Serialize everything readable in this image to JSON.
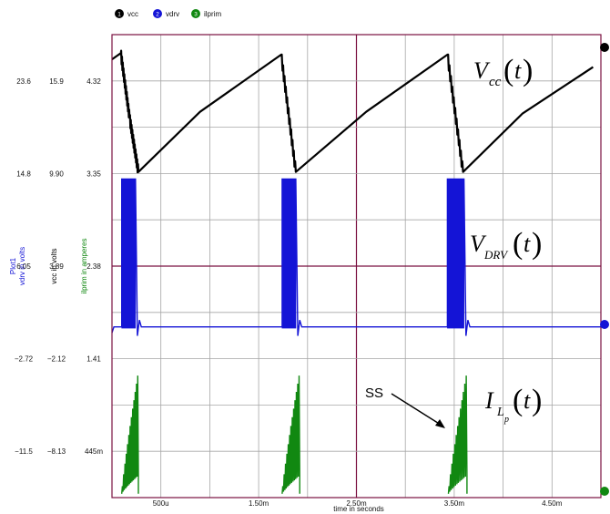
{
  "legend": [
    {
      "num": "1",
      "label": "vcc",
      "color": "#000000"
    },
    {
      "num": "2",
      "label": "vdrv",
      "color": "#1414d6"
    },
    {
      "num": "3",
      "label": "ilprim",
      "color": "#118811"
    }
  ],
  "colors": {
    "plot_border": "#7a1040",
    "grid": "#a6a6a6",
    "vcc": "#000000",
    "vdrv": "#1414d6",
    "ilprim": "#118811"
  },
  "axis_titles": {
    "plot_title": "Plot1",
    "vdrv": "vdrv in volts",
    "vcc": "vcc in volts",
    "ilprim": "ilprim in amperes",
    "x": "time in seconds"
  },
  "annotations": {
    "vcc": {
      "main": "V",
      "sub": "cc",
      "arg": "t"
    },
    "vdrv": {
      "main": "V",
      "sub": "DRV",
      "arg": "t"
    },
    "ilp": {
      "main": "I",
      "sub": "L",
      "subsub": "p",
      "arg": "t"
    },
    "ss": "SS"
  },
  "chart_data": {
    "type": "line",
    "xlabel": "time in seconds",
    "x_tick_labels": [
      "500u",
      "1.50m",
      "2.50m",
      "3.50m",
      "4.50m"
    ],
    "x_ticks": [
      0.0005,
      0.0015,
      0.0025,
      0.0035,
      0.0045
    ],
    "xlim": [
      0,
      0.005
    ],
    "y_tick_labels": {
      "vdrv": [
        "23.6",
        "14.8",
        "6.05",
        "−2.72",
        "−11.5"
      ],
      "vcc": [
        "15.9",
        "9.90",
        "3.89",
        "−2.12",
        "−8.13"
      ],
      "ilprim": [
        "4.32",
        "3.35",
        "2.38",
        "1.41",
        "445m"
      ]
    },
    "ylim": {
      "vcc": [
        -11.1,
        18.9
      ],
      "vdrv": [
        -15.9,
        27.9
      ],
      "ilprim": [
        -0.04,
        4.81
      ]
    },
    "series": [
      {
        "name": "vcc",
        "unit": "volts",
        "points": [
          [
            0,
            17.3
          ],
          [
            9e-05,
            17.7
          ],
          [
            0.00018,
            13.5
          ],
          [
            0.00027,
            10.0
          ],
          [
            0.0009,
            13.9
          ],
          [
            0.00173,
            17.6
          ],
          [
            0.00188,
            10.0
          ],
          [
            0.0026,
            13.9
          ],
          [
            0.00343,
            17.6
          ],
          [
            0.00359,
            10.0
          ],
          [
            0.0042,
            13.8
          ],
          [
            0.00492,
            16.8
          ]
        ]
      },
      {
        "name": "vdrv",
        "unit": "volts",
        "baseline": 0.25,
        "bursts": [
          {
            "start": 0.0001,
            "end": 0.00024
          },
          {
            "start": 0.00174,
            "end": 0.00188
          },
          {
            "start": 0.00343,
            "end": 0.0036
          }
        ],
        "peak": 14.3,
        "trough": 0.1
      },
      {
        "name": "ilprim",
        "unit": "amperes",
        "bursts": [
          {
            "start": 0.0001,
            "end": 0.00027
          },
          {
            "start": 0.00174,
            "end": 0.00192
          },
          {
            "start": 0.00344,
            "end": 0.00363
          }
        ],
        "peak": 1.28,
        "floor": 0.0
      }
    ]
  }
}
